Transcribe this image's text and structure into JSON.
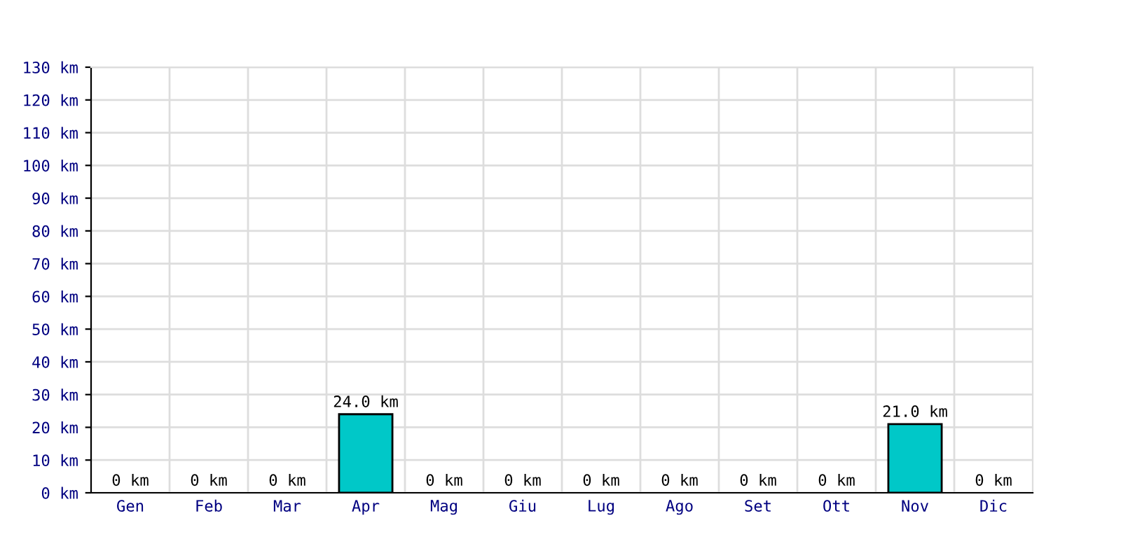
{
  "chart_data": {
    "type": "bar",
    "categories": [
      "Gen",
      "Feb",
      "Mar",
      "Apr",
      "Mag",
      "Giu",
      "Lug",
      "Ago",
      "Set",
      "Ott",
      "Nov",
      "Dic"
    ],
    "values": [
      0,
      0,
      0,
      24,
      0,
      0,
      0,
      0,
      0,
      0,
      21,
      0
    ],
    "value_labels": [
      "0 km",
      "0 km",
      "0 km",
      "24.0 km",
      "0 km",
      "0 km",
      "0 km",
      "0 km",
      "0 km",
      "0 km",
      "21.0 km",
      "0 km"
    ],
    "color": "#00c8c8",
    "ylim": [
      0,
      130
    ],
    "yticks": [
      {
        "value": 0,
        "label": "0 km"
      },
      {
        "value": 10,
        "label": "10 km"
      },
      {
        "value": 20,
        "label": "20 km"
      },
      {
        "value": 30,
        "label": "30 km"
      },
      {
        "value": 40,
        "label": "40 km"
      },
      {
        "value": 50,
        "label": "50 km"
      },
      {
        "value": 60,
        "label": "60 km"
      },
      {
        "value": 70,
        "label": "70 km"
      },
      {
        "value": 80,
        "label": "80 km"
      },
      {
        "value": 90,
        "label": "90 km"
      },
      {
        "value": 100,
        "label": "100 km"
      },
      {
        "value": 110,
        "label": "110 km"
      },
      {
        "value": 120,
        "label": "120 km"
      },
      {
        "value": 130,
        "label": "130 km"
      }
    ],
    "grid": true
  }
}
